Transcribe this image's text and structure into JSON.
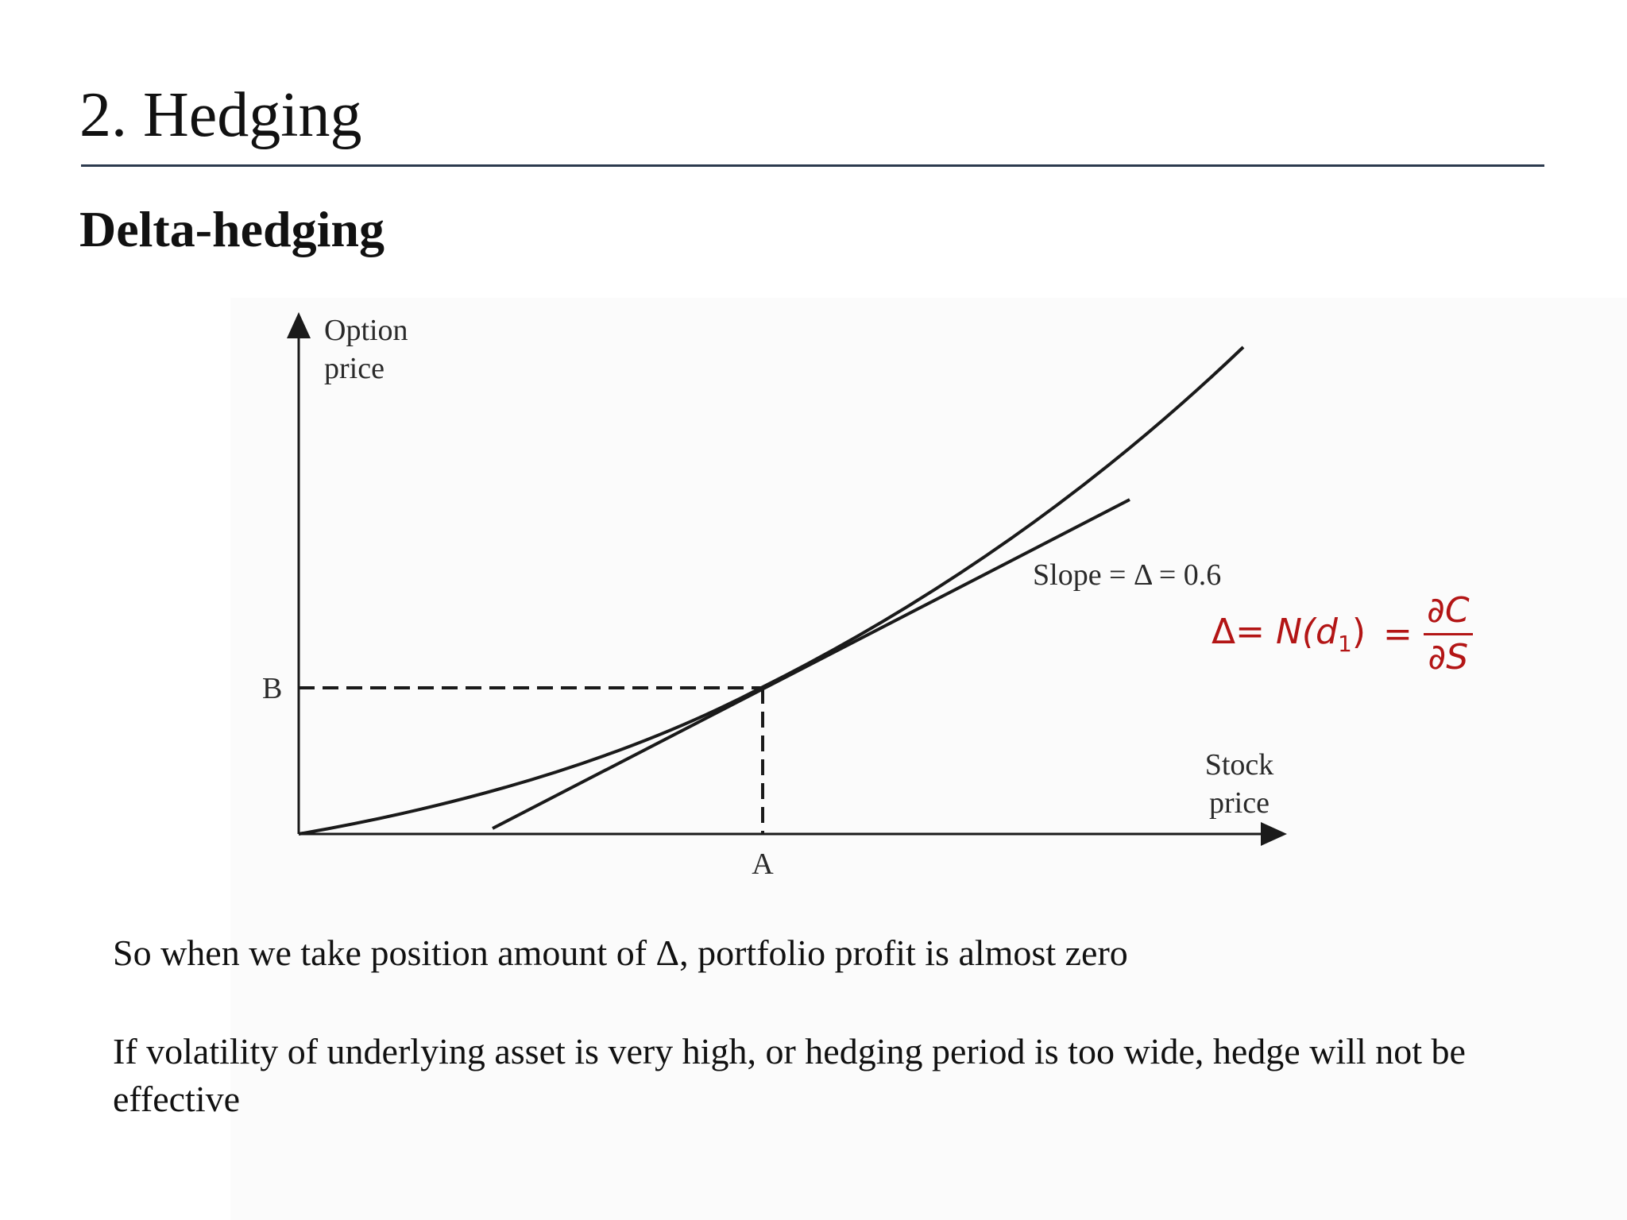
{
  "slide": {
    "title": "2. Hedging",
    "subtitle": "Delta-hedging"
  },
  "diagram": {
    "y_axis_label": [
      "Option",
      "price"
    ],
    "x_axis_label": [
      "Stock",
      "price"
    ],
    "point_b_label": "B",
    "point_a_label": "A",
    "tangent_label": "Slope = Δ = 0.6",
    "line_color": "#1a1a1a",
    "curve": "convex option price vs stock price",
    "tangent": "tangent line touching curve at (A, B)"
  },
  "formula": {
    "lhs_delta": "Δ=",
    "lhs_fn": "N(d",
    "lhs_sub": "1",
    "lhs_close": ")",
    "equals": "=",
    "numerator": "∂C",
    "denominator": "∂S",
    "color": "#b31515"
  },
  "body": {
    "paragraph_1": "So when we take position amount of Δ, portfolio profit is almost zero",
    "paragraph_2": "If volatility of underlying asset is very high, or hedging period is too wide, hedge will not be effective"
  }
}
